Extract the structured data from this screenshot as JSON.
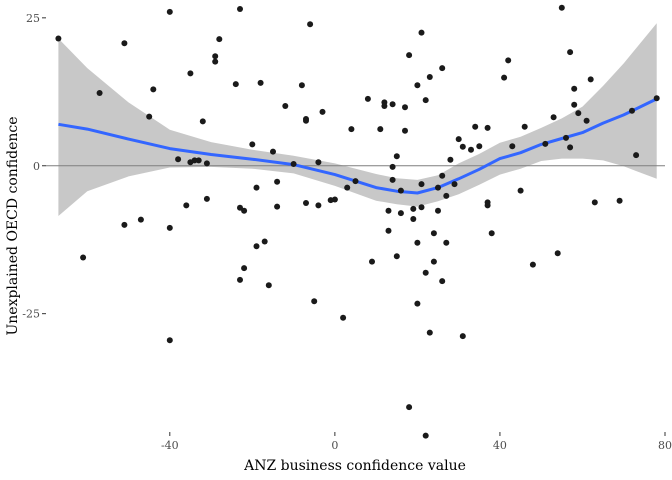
{
  "chart_data": {
    "type": "scatter",
    "title": "",
    "xlabel": "ANZ business confidence value",
    "ylabel": "Unexplained OECD confidence",
    "xlim": [
      -70,
      80
    ],
    "ylim": [
      -45,
      27
    ],
    "x_ticks": [
      -40,
      0,
      40,
      80
    ],
    "x_tick_labels": [
      "-40",
      "0",
      "40",
      "80"
    ],
    "y_ticks": [
      -25,
      0,
      25
    ],
    "y_tick_labels": [
      "-25",
      "0",
      "25"
    ],
    "grid": false,
    "reference_line_y": 0,
    "colors": {
      "points": "#1a1a1a",
      "smooth_line": "#3366ff",
      "confidence_band": "#c8c8c8",
      "reference_line": "#7f7f7f",
      "tick_text": "#4d4d4d"
    },
    "points": [
      [
        -67,
        21.5
      ],
      [
        -61,
        -15.5
      ],
      [
        -57,
        12.3
      ],
      [
        -51,
        20.7
      ],
      [
        -51,
        -10
      ],
      [
        -47,
        -9.1
      ],
      [
        -45,
        8.3
      ],
      [
        -44,
        12.9
      ],
      [
        -40,
        26
      ],
      [
        -40,
        -10.5
      ],
      [
        -40,
        -29.5
      ],
      [
        -38,
        1.1
      ],
      [
        -36,
        -6.7
      ],
      [
        -35,
        15.6
      ],
      [
        -35,
        0.6
      ],
      [
        -34,
        0.9
      ],
      [
        -33,
        0.9
      ],
      [
        -32,
        7.5
      ],
      [
        -31,
        -5.6
      ],
      [
        -31,
        0.4
      ],
      [
        -29,
        18.5
      ],
      [
        -29,
        17.6
      ],
      [
        -28,
        21.4
      ],
      [
        -24,
        13.8
      ],
      [
        -23,
        26.5
      ],
      [
        -23,
        -7.1
      ],
      [
        -23,
        -19.3
      ],
      [
        -22,
        -17.3
      ],
      [
        -22,
        -7.6
      ],
      [
        -20,
        3.6
      ],
      [
        -19,
        -3.7
      ],
      [
        -19,
        -13.6
      ],
      [
        -18,
        14
      ],
      [
        -17,
        -12.8
      ],
      [
        -16,
        -20.2
      ],
      [
        -15,
        2.4
      ],
      [
        -14,
        -6.9
      ],
      [
        -14,
        -2.7
      ],
      [
        -12,
        10.1
      ],
      [
        -10,
        0.3
      ],
      [
        -8,
        13.6
      ],
      [
        -7,
        7.9
      ],
      [
        -7,
        7.6
      ],
      [
        -7,
        -6.3
      ],
      [
        -6,
        23.9
      ],
      [
        -5,
        -22.9
      ],
      [
        -4,
        -6.7
      ],
      [
        -4,
        0.6
      ],
      [
        -3,
        9.1
      ],
      [
        -1,
        -5.8
      ],
      [
        0,
        -5.7
      ],
      [
        2,
        -25.7
      ],
      [
        3,
        -3.7
      ],
      [
        4,
        6.2
      ],
      [
        5,
        -2.6
      ],
      [
        8,
        11.3
      ],
      [
        9,
        -16.2
      ],
      [
        11,
        6.2
      ],
      [
        12,
        10.7
      ],
      [
        12,
        10.1
      ],
      [
        13,
        -7.6
      ],
      [
        13,
        -11
      ],
      [
        14,
        -0.2
      ],
      [
        14,
        -2.4
      ],
      [
        14,
        10.4
      ],
      [
        15,
        -15.3
      ],
      [
        15,
        1.6
      ],
      [
        16,
        -4.2
      ],
      [
        16,
        -8
      ],
      [
        17,
        5.9
      ],
      [
        17,
        9.9
      ],
      [
        18,
        18.7
      ],
      [
        18,
        -40.8
      ],
      [
        19,
        -7.3
      ],
      [
        19,
        -9
      ],
      [
        20,
        -13
      ],
      [
        20,
        13.6
      ],
      [
        20,
        -23.3
      ],
      [
        21,
        22.5
      ],
      [
        21,
        -3.1
      ],
      [
        21,
        -7
      ],
      [
        22,
        11.1
      ],
      [
        22,
        -18.1
      ],
      [
        22,
        -45.6
      ],
      [
        23,
        15
      ],
      [
        23,
        -28.2
      ],
      [
        24,
        -16.2
      ],
      [
        24,
        -11.4
      ],
      [
        25,
        -7.6
      ],
      [
        25,
        -3.7
      ],
      [
        26,
        -19.5
      ],
      [
        26,
        16.5
      ],
      [
        26,
        -1.7
      ],
      [
        27,
        -13
      ],
      [
        27,
        -5.1
      ],
      [
        28,
        1
      ],
      [
        29,
        -3.1
      ],
      [
        30,
        4.5
      ],
      [
        31,
        3.2
      ],
      [
        31,
        -28.8
      ],
      [
        33,
        2.7
      ],
      [
        34,
        6.6
      ],
      [
        35,
        3.3
      ],
      [
        37,
        6.4
      ],
      [
        37,
        -6.7
      ],
      [
        37,
        -6.2
      ],
      [
        38,
        -11.4
      ],
      [
        41,
        14.9
      ],
      [
        42,
        17.8
      ],
      [
        43,
        3.3
      ],
      [
        45,
        -4.2
      ],
      [
        46,
        6.6
      ],
      [
        48,
        -16.7
      ],
      [
        51,
        3.7
      ],
      [
        53,
        8.2
      ],
      [
        54,
        -14.8
      ],
      [
        55,
        26.7
      ],
      [
        56,
        4.7
      ],
      [
        57,
        3.1
      ],
      [
        57,
        19.2
      ],
      [
        58,
        13
      ],
      [
        58,
        10.3
      ],
      [
        59,
        8.9
      ],
      [
        61,
        7.6
      ],
      [
        62,
        14.6
      ],
      [
        63,
        -6.2
      ],
      [
        69,
        -5.9
      ],
      [
        72,
        9.3
      ],
      [
        73,
        1.8
      ],
      [
        78,
        11.4
      ]
    ],
    "smooth": {
      "method": "loess",
      "x": [
        -67,
        -60,
        -50,
        -40,
        -30,
        -20,
        -10,
        0,
        10,
        15,
        20,
        25,
        30,
        35,
        40,
        45,
        50,
        55,
        60,
        65,
        70,
        78
      ],
      "y": [
        7,
        6.2,
        4.5,
        2.9,
        1.9,
        1.1,
        0.2,
        -1.5,
        -3.7,
        -4.3,
        -4.6,
        -3.7,
        -2.2,
        -0.6,
        1.2,
        2.2,
        3.6,
        4.6,
        5.6,
        7.2,
        8.6,
        11.3
      ],
      "lower": [
        -8.5,
        -4.3,
        -1.8,
        -0.3,
        -0.2,
        -0.5,
        -1.3,
        -3.4,
        -5.9,
        -6.5,
        -6.9,
        -6.0,
        -4.8,
        -3.2,
        -1.5,
        -0.5,
        0.8,
        1.2,
        1.2,
        0.9,
        -0.1,
        -2.2
      ],
      "upper": [
        21.5,
        16.5,
        10.7,
        6.1,
        4.0,
        2.7,
        1.7,
        0.4,
        -1.4,
        -2.1,
        -2.4,
        -1.6,
        0.4,
        2.0,
        3.9,
        4.9,
        6.4,
        8.0,
        10.0,
        13.5,
        17.3,
        24.1
      ]
    }
  }
}
